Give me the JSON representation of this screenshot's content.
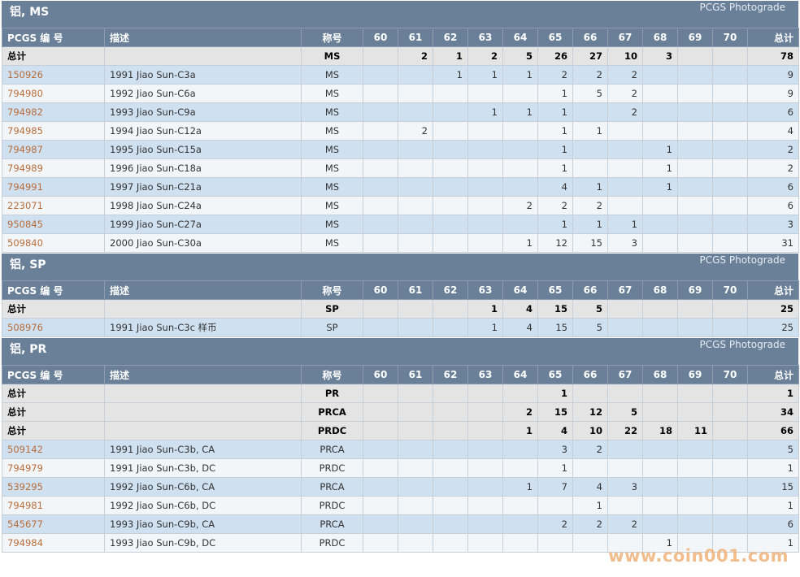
{
  "columns": [
    "PCGS 编 号",
    "描述",
    "称号",
    "60",
    "61",
    "62",
    "63",
    "64",
    "65",
    "66",
    "67",
    "68",
    "69",
    "70",
    "总计"
  ],
  "photograde_label": "PCGS Photograde",
  "sections": [
    {
      "title": "铝, MS",
      "rows": [
        {
          "type": "total",
          "code": "总计",
          "desc": "",
          "desig": "MS",
          "g": [
            "",
            "2",
            "1",
            "2",
            "5",
            "26",
            "27",
            "10",
            "3",
            "",
            ""
          ],
          "total": "78"
        },
        {
          "type": "item",
          "code": "150926",
          "desc": "1991 Jiao Sun-C3a",
          "desig": "MS",
          "g": [
            "",
            "",
            "1",
            "1",
            "1",
            "2",
            "2",
            "2",
            "",
            "",
            ""
          ],
          "total": "9"
        },
        {
          "type": "item",
          "code": "794980",
          "desc": "1992 Jiao Sun-C6a",
          "desig": "MS",
          "g": [
            "",
            "",
            "",
            "",
            "",
            "1",
            "5",
            "2",
            "",
            "",
            ""
          ],
          "total": "9"
        },
        {
          "type": "item",
          "code": "794982",
          "desc": "1993 Jiao Sun-C9a",
          "desig": "MS",
          "g": [
            "",
            "",
            "",
            "1",
            "1",
            "1",
            "",
            "2",
            "",
            "",
            ""
          ],
          "total": "6"
        },
        {
          "type": "item",
          "code": "794985",
          "desc": "1994 Jiao Sun-C12a",
          "desig": "MS",
          "g": [
            "",
            "2",
            "",
            "",
            "",
            "1",
            "1",
            "",
            "",
            "",
            ""
          ],
          "total": "4"
        },
        {
          "type": "item",
          "code": "794987",
          "desc": "1995 Jiao Sun-C15a",
          "desig": "MS",
          "g": [
            "",
            "",
            "",
            "",
            "",
            "1",
            "",
            "",
            "1",
            "",
            ""
          ],
          "total": "2"
        },
        {
          "type": "item",
          "code": "794989",
          "desc": "1996 Jiao Sun-C18a",
          "desig": "MS",
          "g": [
            "",
            "",
            "",
            "",
            "",
            "1",
            "",
            "",
            "1",
            "",
            ""
          ],
          "total": "2"
        },
        {
          "type": "item",
          "code": "794991",
          "desc": "1997 Jiao Sun-C21a",
          "desig": "MS",
          "g": [
            "",
            "",
            "",
            "",
            "",
            "4",
            "1",
            "",
            "1",
            "",
            ""
          ],
          "total": "6"
        },
        {
          "type": "item",
          "code": "223071",
          "desc": "1998 Jiao Sun-C24a",
          "desig": "MS",
          "g": [
            "",
            "",
            "",
            "",
            "2",
            "2",
            "2",
            "",
            "",
            "",
            ""
          ],
          "total": "6"
        },
        {
          "type": "item",
          "code": "950845",
          "desc": "1999 Jiao Sun-C27a",
          "desig": "MS",
          "g": [
            "",
            "",
            "",
            "",
            "",
            "1",
            "1",
            "1",
            "",
            "",
            ""
          ],
          "total": "3"
        },
        {
          "type": "item",
          "code": "509840",
          "desc": "2000 Jiao Sun-C30a",
          "desig": "MS",
          "g": [
            "",
            "",
            "",
            "",
            "1",
            "12",
            "15",
            "3",
            "",
            "",
            ""
          ],
          "total": "31"
        }
      ]
    },
    {
      "title": "铝, SP",
      "rows": [
        {
          "type": "total",
          "code": "总计",
          "desc": "",
          "desig": "SP",
          "g": [
            "",
            "",
            "",
            "1",
            "4",
            "15",
            "5",
            "",
            "",
            "",
            ""
          ],
          "total": "25"
        },
        {
          "type": "item",
          "code": "508976",
          "desc": "1991 Jiao Sun-C3c 样币",
          "desig": "SP",
          "g": [
            "",
            "",
            "",
            "1",
            "4",
            "15",
            "5",
            "",
            "",
            "",
            ""
          ],
          "total": "25"
        }
      ]
    },
    {
      "title": "铝, PR",
      "rows": [
        {
          "type": "total",
          "code": "总计",
          "desc": "",
          "desig": "PR",
          "g": [
            "",
            "",
            "",
            "",
            "",
            "1",
            "",
            "",
            "",
            "",
            ""
          ],
          "total": "1"
        },
        {
          "type": "total",
          "code": "总计",
          "desc": "",
          "desig": "PRCA",
          "g": [
            "",
            "",
            "",
            "",
            "2",
            "15",
            "12",
            "5",
            "",
            "",
            ""
          ],
          "total": "34"
        },
        {
          "type": "total",
          "code": "总计",
          "desc": "",
          "desig": "PRDC",
          "g": [
            "",
            "",
            "",
            "",
            "1",
            "4",
            "10",
            "22",
            "18",
            "11",
            ""
          ],
          "total": "66"
        },
        {
          "type": "item",
          "code": "509142",
          "desc": "1991 Jiao Sun-C3b, CA",
          "desig": "PRCA",
          "g": [
            "",
            "",
            "",
            "",
            "",
            "3",
            "2",
            "",
            "",
            "",
            ""
          ],
          "total": "5"
        },
        {
          "type": "item",
          "code": "794979",
          "desc": "1991 Jiao Sun-C3b, DC",
          "desig": "PRDC",
          "g": [
            "",
            "",
            "",
            "",
            "",
            "1",
            "",
            "",
            "",
            "",
            ""
          ],
          "total": "1"
        },
        {
          "type": "item",
          "code": "539295",
          "desc": "1992 Jiao Sun-C6b, CA",
          "desig": "PRCA",
          "g": [
            "",
            "",
            "",
            "",
            "1",
            "7",
            "4",
            "3",
            "",
            "",
            ""
          ],
          "total": "15"
        },
        {
          "type": "item",
          "code": "794981",
          "desc": "1992 Jiao Sun-C6b, DC",
          "desig": "PRDC",
          "g": [
            "",
            "",
            "",
            "",
            "",
            "",
            "1",
            "",
            "",
            "",
            ""
          ],
          "total": "1"
        },
        {
          "type": "item",
          "code": "545677",
          "desc": "1993 Jiao Sun-C9b, CA",
          "desig": "PRCA",
          "g": [
            "",
            "",
            "",
            "",
            "",
            "2",
            "2",
            "2",
            "",
            "",
            ""
          ],
          "total": "6"
        },
        {
          "type": "item",
          "code": "794984",
          "desc": "1993 Jiao Sun-C9b, DC",
          "desig": "PRDC",
          "g": [
            "",
            "",
            "",
            "",
            "",
            "",
            "",
            "",
            "1",
            "",
            ""
          ],
          "total": "1"
        }
      ]
    }
  ],
  "watermark": "www.coin001.com"
}
